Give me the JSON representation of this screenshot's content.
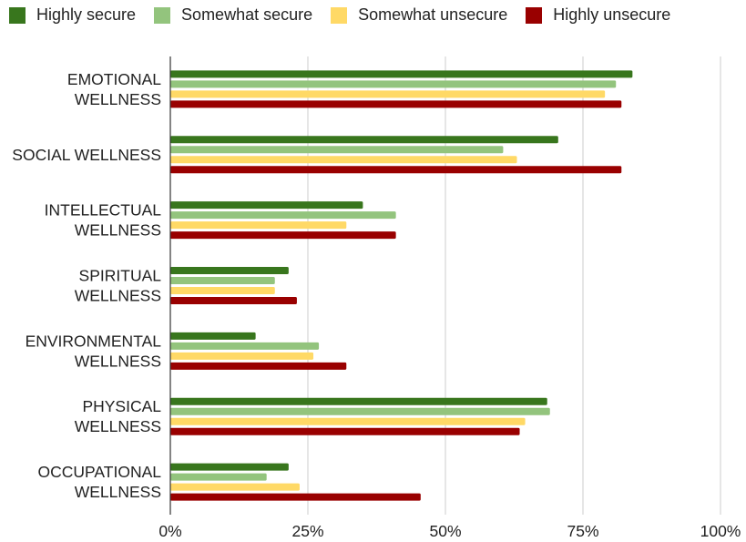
{
  "chart_data": {
    "type": "bar",
    "orientation": "horizontal",
    "categories": [
      [
        "EMOTIONAL",
        "WELLNESS"
      ],
      [
        "SOCIAL WELLNESS"
      ],
      [
        "INTELLECTUAL",
        "WELLNESS"
      ],
      [
        "SPIRITUAL",
        "WELLNESS"
      ],
      [
        "ENVIRONMENTAL",
        "WELLNESS"
      ],
      [
        "PHYSICAL",
        "WELLNESS"
      ],
      [
        "OCCUPATIONAL",
        "WELLNESS"
      ]
    ],
    "series": [
      {
        "name": "Highly secure",
        "color": "#38761d",
        "values": [
          84,
          70.5,
          35,
          21.5,
          15.5,
          68.5,
          21.5
        ]
      },
      {
        "name": "Somewhat secure",
        "color": "#93c47d",
        "values": [
          81,
          60.5,
          41,
          19,
          27,
          69,
          17.5
        ]
      },
      {
        "name": "Somewhat unsecure",
        "color": "#ffd966",
        "values": [
          79,
          63,
          32,
          19,
          26,
          64.5,
          23.5
        ]
      },
      {
        "name": "Highly unsecure",
        "color": "#990000",
        "values": [
          82,
          82,
          41,
          23,
          32,
          63.5,
          45.5
        ]
      }
    ],
    "xlim": [
      0,
      100
    ],
    "xticks": [
      0,
      25,
      50,
      75,
      100
    ],
    "tick_labels": [
      "0%",
      "25%",
      "50%",
      "75%",
      "100%"
    ],
    "grid": true,
    "legend_position": "top"
  }
}
